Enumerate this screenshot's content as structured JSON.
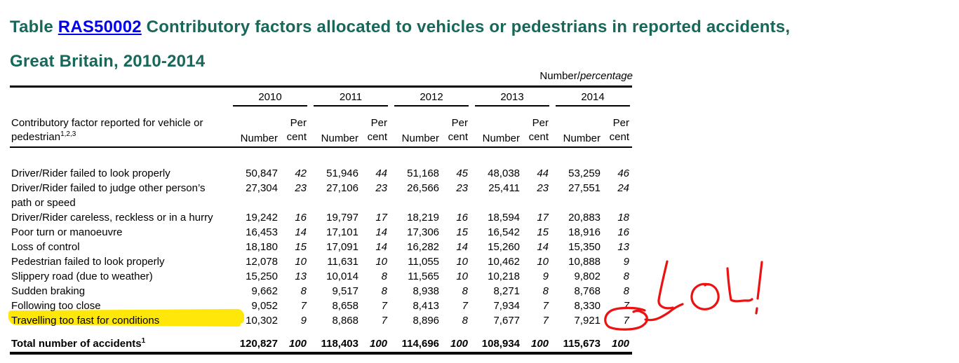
{
  "title": {
    "prefix": "Table ",
    "link": "RAS50002",
    "rest": " Contributory factors allocated to vehicles or pedestrians in reported accidents,",
    "line2": "Great Britain, 2010-2014"
  },
  "unit_label": {
    "normal": "Number/",
    "italic": "percentage"
  },
  "table": {
    "factor_header_line1": "Contributory factor reported for vehicle or",
    "factor_header_base": "pedestrian",
    "factor_header_sup": "1,2,3",
    "years": [
      "2010",
      "2011",
      "2012",
      "2013",
      "2014"
    ],
    "col_number": "Number",
    "col_per": "Per",
    "col_cent": "cent",
    "rows": [
      {
        "factor": "Driver/Rider failed to look properly",
        "highlight": false,
        "values": [
          [
            "50,847",
            "42"
          ],
          [
            "51,946",
            "44"
          ],
          [
            "51,168",
            "45"
          ],
          [
            "48,038",
            "44"
          ],
          [
            "53,259",
            "46"
          ]
        ]
      },
      {
        "factor": "Driver/Rider failed to judge other person’s path or speed",
        "highlight": false,
        "values": [
          [
            "27,304",
            "23"
          ],
          [
            "27,106",
            "23"
          ],
          [
            "26,566",
            "23"
          ],
          [
            "25,411",
            "23"
          ],
          [
            "27,551",
            "24"
          ]
        ]
      },
      {
        "factor": "Driver/Rider careless, reckless or in a hurry",
        "highlight": false,
        "values": [
          [
            "19,242",
            "16"
          ],
          [
            "19,797",
            "17"
          ],
          [
            "18,219",
            "16"
          ],
          [
            "18,594",
            "17"
          ],
          [
            "20,883",
            "18"
          ]
        ]
      },
      {
        "factor": "Poor turn or manoeuvre",
        "highlight": false,
        "values": [
          [
            "16,453",
            "14"
          ],
          [
            "17,101",
            "14"
          ],
          [
            "17,306",
            "15"
          ],
          [
            "16,542",
            "15"
          ],
          [
            "18,916",
            "16"
          ]
        ]
      },
      {
        "factor": "Loss of control",
        "highlight": false,
        "values": [
          [
            "18,180",
            "15"
          ],
          [
            "17,091",
            "14"
          ],
          [
            "16,282",
            "14"
          ],
          [
            "15,260",
            "14"
          ],
          [
            "15,350",
            "13"
          ]
        ]
      },
      {
        "factor": "Pedestrian failed to look properly",
        "highlight": false,
        "values": [
          [
            "12,078",
            "10"
          ],
          [
            "11,631",
            "10"
          ],
          [
            "11,055",
            "10"
          ],
          [
            "10,462",
            "10"
          ],
          [
            "10,888",
            "9"
          ]
        ]
      },
      {
        "factor": "Slippery road (due to weather)",
        "highlight": false,
        "values": [
          [
            "15,250",
            "13"
          ],
          [
            "10,014",
            "8"
          ],
          [
            "11,565",
            "10"
          ],
          [
            "10,218",
            "9"
          ],
          [
            "9,802",
            "8"
          ]
        ]
      },
      {
        "factor": "Sudden braking",
        "highlight": false,
        "values": [
          [
            "9,662",
            "8"
          ],
          [
            "9,517",
            "8"
          ],
          [
            "8,938",
            "8"
          ],
          [
            "8,271",
            "8"
          ],
          [
            "8,768",
            "8"
          ]
        ]
      },
      {
        "factor": "Following too close",
        "highlight": false,
        "values": [
          [
            "9,052",
            "7"
          ],
          [
            "8,658",
            "7"
          ],
          [
            "8,413",
            "7"
          ],
          [
            "7,934",
            "7"
          ],
          [
            "8,330",
            "7"
          ]
        ]
      },
      {
        "factor": "Travelling too fast for conditions",
        "highlight": true,
        "values": [
          [
            "10,302",
            "9"
          ],
          [
            "8,868",
            "7"
          ],
          [
            "8,896",
            "8"
          ],
          [
            "7,677",
            "7"
          ],
          [
            "7,921",
            "7"
          ]
        ]
      }
    ],
    "total": {
      "label": "Total number of accidents",
      "sup": "1",
      "values": [
        [
          "120,827",
          "100"
        ],
        [
          "118,403",
          "100"
        ],
        [
          "114,696",
          "100"
        ],
        [
          "108,934",
          "100"
        ],
        [
          "115,673",
          "100"
        ]
      ]
    }
  },
  "annotations": {
    "marker_text": "LOL!",
    "marker_color": "#ED1111",
    "highlight_color": "#FFE70A",
    "title_color": "#17685A",
    "link_color": "#0000EE"
  }
}
